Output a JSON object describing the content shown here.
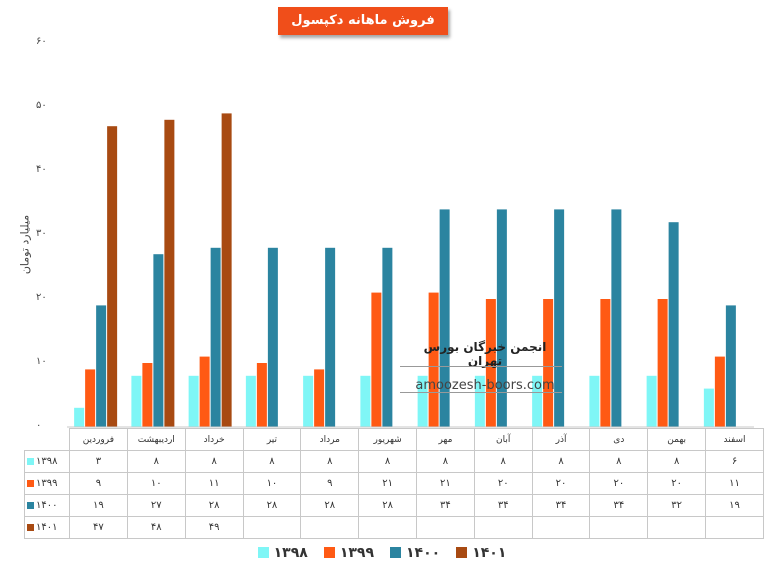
{
  "chart_data": {
    "type": "bar",
    "title": "فروش ماهانه دکپسول",
    "ylabel": "میلیارد تومان",
    "ylim": [
      0,
      60
    ],
    "yticks": [
      "۰",
      "۱۰",
      "۲۰",
      "۳۰",
      "۴۰",
      "۵۰",
      "۶۰"
    ],
    "categories": [
      "فروردین",
      "اردیبهشت",
      "خرداد",
      "تیر",
      "مرداد",
      "شهریور",
      "مهر",
      "آبان",
      "آذر",
      "دی",
      "بهمن",
      "اسفند"
    ],
    "series": [
      {
        "name": "۱۳۹۸",
        "color": "#7ff6f6",
        "values": [
          3,
          8,
          8,
          8,
          8,
          8,
          8,
          8,
          8,
          8,
          8,
          6
        ],
        "labels": [
          "۳",
          "۸",
          "۸",
          "۸",
          "۸",
          "۸",
          "۸",
          "۸",
          "۸",
          "۸",
          "۸",
          "۶"
        ]
      },
      {
        "name": "۱۳۹۹",
        "color": "#ff5a14",
        "values": [
          9,
          10,
          11,
          10,
          9,
          21,
          21,
          20,
          20,
          20,
          20,
          11
        ],
        "labels": [
          "۹",
          "۱۰",
          "۱۱",
          "۱۰",
          "۹",
          "۲۱",
          "۲۱",
          "۲۰",
          "۲۰",
          "۲۰",
          "۲۰",
          "۱۱"
        ]
      },
      {
        "name": "۱۴۰۰",
        "color": "#2b84a0",
        "values": [
          19,
          27,
          28,
          28,
          28,
          28,
          34,
          34,
          34,
          34,
          32,
          19
        ],
        "labels": [
          "۱۹",
          "۲۷",
          "۲۸",
          "۲۸",
          "۲۸",
          "۲۸",
          "۳۴",
          "۳۴",
          "۳۴",
          "۳۴",
          "۳۲",
          "۱۹"
        ]
      },
      {
        "name": "۱۴۰۱",
        "color": "#a84a12",
        "values": [
          47,
          48,
          49,
          null,
          null,
          null,
          null,
          null,
          null,
          null,
          null,
          null
        ],
        "labels": [
          "۴۷",
          "۴۸",
          "۴۹",
          "",
          "",
          "",
          "",
          "",
          "",
          "",
          "",
          ""
        ]
      }
    ],
    "grid": false,
    "legend": "bottom"
  },
  "watermark": {
    "title": "انجمن خبرگان بورس تهران",
    "url": "amoozesh-boors.com"
  }
}
